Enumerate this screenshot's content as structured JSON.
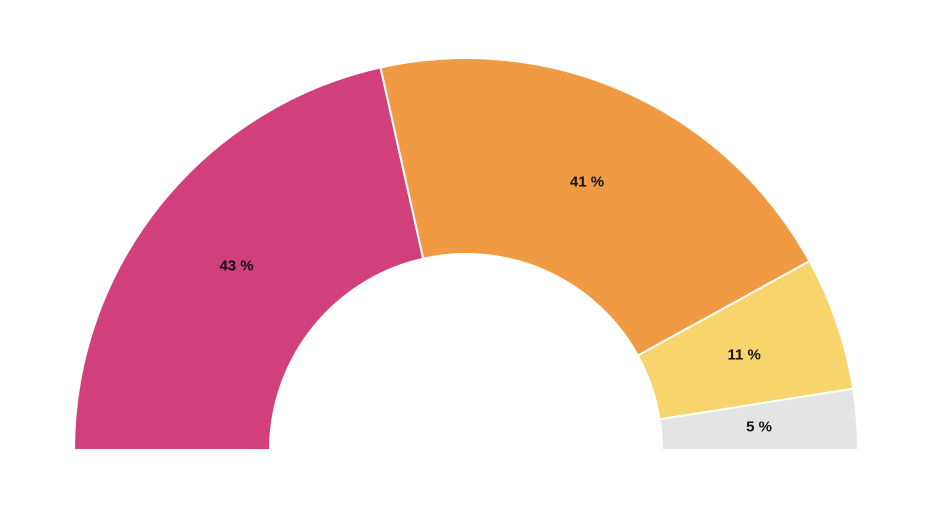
{
  "chart_data": {
    "type": "pie",
    "variant": "semi-donut",
    "title": "",
    "slices": [
      {
        "value": 43,
        "label": "43 %",
        "color": "#d2407b"
      },
      {
        "value": 41,
        "label": "41 %",
        "color": "#f09b43"
      },
      {
        "value": 11,
        "label": "11 %",
        "color": "#f8d46d"
      },
      {
        "value": 5,
        "label": "5 %",
        "color": "#e4e4e4"
      }
    ]
  }
}
